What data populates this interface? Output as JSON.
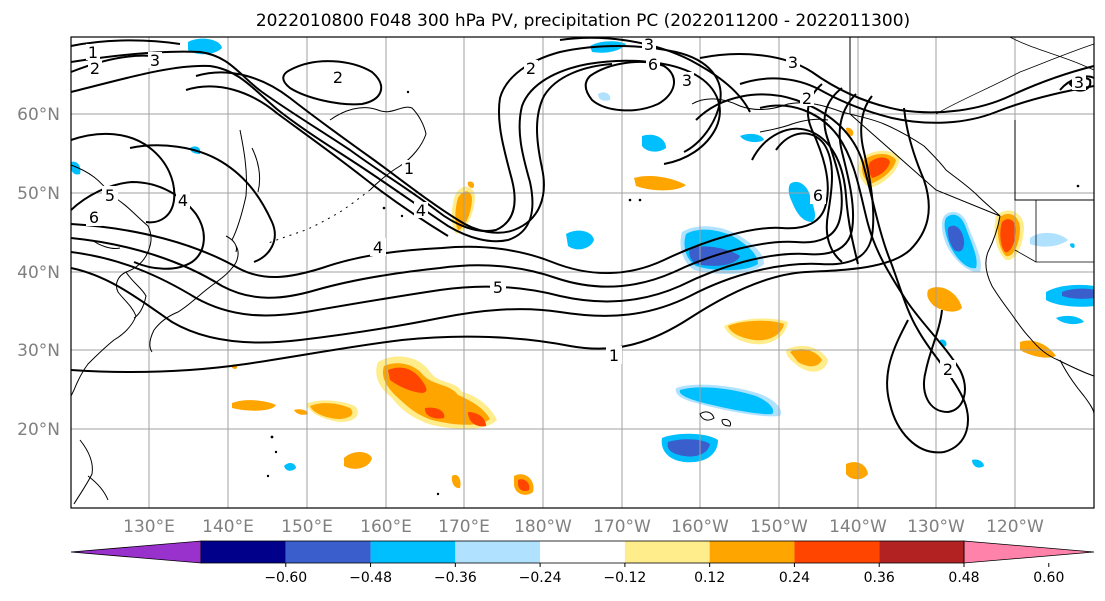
{
  "title": "2022010800 F048 300 hPa PV, precipitation PC (2022011200 - 2022011300)",
  "lat_labels": [
    "60°N",
    "50°N",
    "40°N",
    "30°N",
    "20°N"
  ],
  "lon_labels": [
    "130°E",
    "140°E",
    "150°E",
    "160°E",
    "170°E",
    "180°W",
    "170°W",
    "160°W",
    "150°W",
    "140°W",
    "130°W",
    "120°W"
  ],
  "contour_labels": [
    "1",
    "2",
    "3",
    "4",
    "5",
    "6"
  ],
  "colorbar": {
    "ticks": [
      "−0.60",
      "−0.48",
      "−0.36",
      "−0.24",
      "−0.12",
      "0.12",
      "0.24",
      "0.36",
      "0.48",
      "0.60"
    ],
    "colors": [
      "#9932cc",
      "#00008b",
      "#3a5fcd",
      "#00bfff",
      "#b0e2ff",
      "#ffffff",
      "#ffec8b",
      "#ffa500",
      "#ff4500",
      "#b22222",
      "#ff82ab"
    ]
  },
  "colors": {
    "grid": "#a0a0a0",
    "coast": "#000000",
    "contour": "#000000",
    "tick_label": "#808080"
  }
}
